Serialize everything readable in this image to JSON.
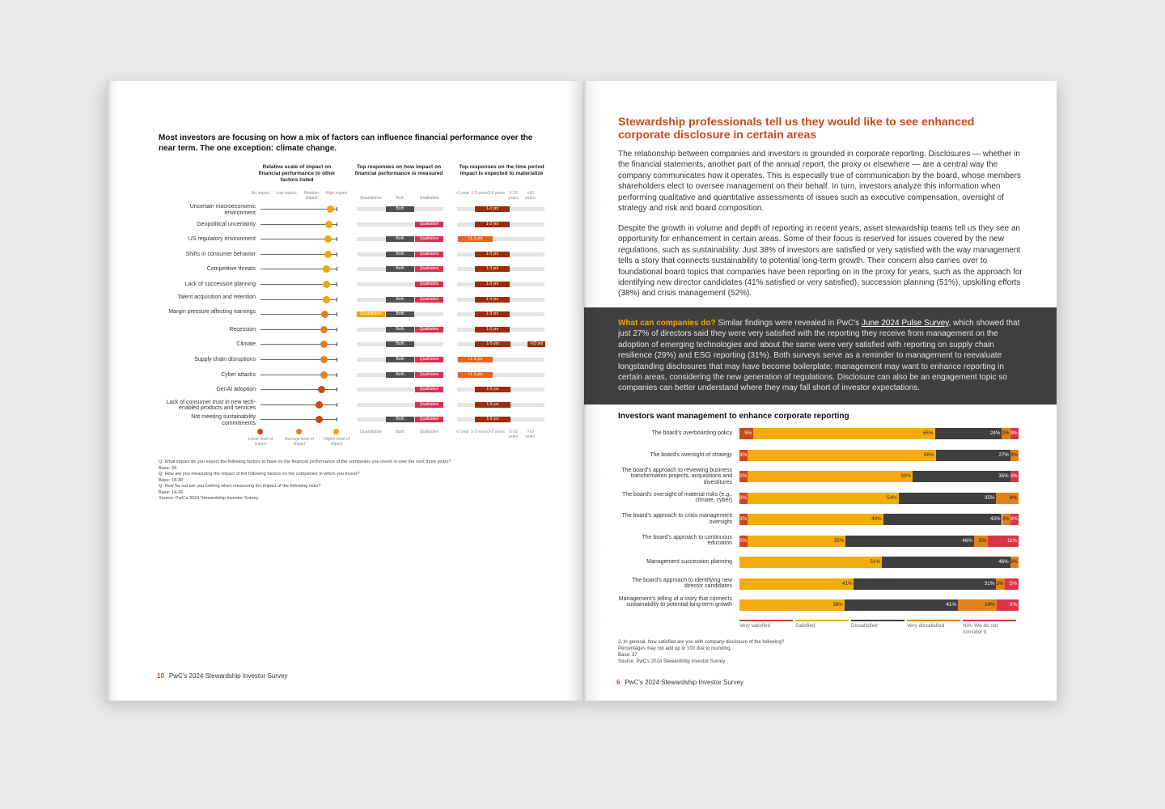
{
  "left_page": {
    "title": "Most investors are focusing on how a mix of factors can influence financial performance over the near term. The one exception: climate change.",
    "column_headers": [
      "Relative scale of impact on financial performance to other factors listed",
      "Top responses on how impact on financial performance is measured",
      "Top responses on the time period impact is expected to materialize"
    ],
    "scale_labels": [
      "No impact",
      "Low impact",
      "Medium impact",
      "High impact"
    ],
    "measure_labels": [
      "Quantitative",
      "Both",
      "Qualitative"
    ],
    "period_labels": [
      "<1 year",
      "1-3 years",
      "3-5 years",
      "5-10 years",
      ">10 years"
    ],
    "rows": [
      {
        "label": "Uncertain macroeconomic environment",
        "impact": 2.75,
        "level": "higher",
        "measure": [
          "Both"
        ],
        "periods": [
          "1-3 yrs"
        ]
      },
      {
        "label": "Geopolitical uncertainty",
        "impact": 2.7,
        "level": "higher",
        "measure": [
          "Qualitative"
        ],
        "periods": [
          "1-3 yrs"
        ]
      },
      {
        "label": "US regulatory environment",
        "impact": 2.65,
        "level": "higher",
        "measure": [
          "Both",
          "Qualitative"
        ],
        "periods": [
          "<1-3 yrs"
        ]
      },
      {
        "label": "Shifts in consumer behavior",
        "impact": 2.65,
        "level": "higher",
        "measure": [
          "Both",
          "Qualitative"
        ],
        "periods": [
          "1-3 yrs"
        ]
      },
      {
        "label": "Competitive threats",
        "impact": 2.6,
        "level": "higher",
        "measure": [
          "Both",
          "Qualitative"
        ],
        "periods": [
          "1-3 yrs"
        ]
      },
      {
        "label": "Lack of succession planning",
        "impact": 2.6,
        "level": "higher",
        "measure": [
          "Qualitative"
        ],
        "periods": [
          "1-3 yrs"
        ]
      },
      {
        "label": "Talent acquisition and retention",
        "impact": 2.6,
        "level": "higher",
        "measure": [
          "Both",
          "Qualitative"
        ],
        "periods": [
          "1-3 yrs"
        ]
      },
      {
        "label": "Margin pressure affecting earnings",
        "impact": 2.55,
        "level": "average",
        "measure": [
          "Quantitative",
          "Both"
        ],
        "periods": [
          "1-3 yrs"
        ]
      },
      {
        "label": "Recession",
        "impact": 2.5,
        "level": "average",
        "measure": [
          "Both",
          "Qualitative"
        ],
        "periods": [
          "1-3 yrs"
        ]
      },
      {
        "label": "Climate",
        "impact": 2.5,
        "level": "average",
        "measure": [
          "Both"
        ],
        "periods": [
          "1-5 yrs",
          ">10 yrs"
        ]
      },
      {
        "label": "Supply chain disruptions",
        "impact": 2.5,
        "level": "average",
        "measure": [
          "Both",
          "Qualitative"
        ],
        "periods": [
          "<1-3 yrs"
        ]
      },
      {
        "label": "Cyber attacks",
        "impact": 2.5,
        "level": "average",
        "measure": [
          "Both",
          "Qualitative"
        ],
        "periods": [
          "<1-3 yrs"
        ]
      },
      {
        "label": "GenAI adoption",
        "impact": 2.4,
        "level": "lower",
        "measure": [
          "Qualitative"
        ],
        "periods": [
          "1-5 yrs"
        ]
      },
      {
        "label": "Lack of consumer trust in new tech-enabled products and services",
        "impact": 2.3,
        "level": "lower",
        "measure": [
          "Qualitative"
        ],
        "periods": [
          "1-5 yrs"
        ]
      },
      {
        "label": "Not meeting sustainability commitments",
        "impact": 2.3,
        "level": "lower",
        "measure": [
          "Both",
          "Qualitative"
        ],
        "periods": [
          "1-5 yrs"
        ]
      }
    ],
    "key": [
      "Lower level of impact",
      "Average level of impact",
      "Higher level of impact"
    ],
    "notes": [
      "Q: What impact do you expect the following factors to have on the financial performance of the companies you invest in over the next three years?",
      "Base: 34",
      "Q: How are you measuring the impact of the following factors on the companies in which you invest?",
      "Base: 18-30",
      "Q: How far out are you looking when measuring the impact of the following risks?",
      "Base: 14-26",
      "Source: PwC's 2024 Stewardship Investor Survey"
    ],
    "page_number": "10",
    "footer": "PwC's 2024 Stewardship Investor Survey"
  },
  "right_page": {
    "heading": "Stewardship professionals tell us they would like to see enhanced corporate disclosure in certain areas",
    "paragraph1": "The relationship between companies and investors is grounded in corporate reporting. Disclosures — whether in the financial statements, another part of the annual report, the proxy or elsewhere — are a central way the company communicates how it operates. This is especially true of communication by the board, whose members shareholders elect to oversee management on their behalf. In turn, investors analyze this information when performing qualitative and quantitative assessments of issues such as executive compensation, oversight of strategy and risk and board composition.",
    "paragraph2": "Despite the growth in volume and depth of reporting in recent years, asset stewardship teams tell us they see an opportunity for enhancement in certain areas. Some of their focus is reserved for issues covered by the new regulations, such as sustainability. Just 38% of investors are satisfied or very satisfied with the way management tells a story that connects sustainability to potential long-term growth. Their concern also carries over to foundational board topics that companies have been reporting on in the proxy for years, such as the approach for identifying new director candidates (41% satisfied or very satisfied), succession planning (51%), upskilling efforts (38%) and crisis management (52%).",
    "callout": {
      "heading": "What can companies do?",
      "before_link": " Similar findings were revealed in PwC's ",
      "link": "June 2024 Pulse Survey",
      "after_link": ", which showed that just 27% of directors said they were very satisfied with the reporting they receive from management on the adoption of emerging technologies and about the same were very satisfied with reporting on supply chain resilience (29%) and ESG reporting (31%). Both surveys serve as a reminder to management to reevaluate longstanding disclosures that may have become boilerplate; management may want to enhance reporting in certain areas, considering the new generation of regulations. Disclosure can also be an engagement topic so companies can better understand where they may fall short of investor expectations."
    },
    "page_number": "6",
    "footer": "PwC's 2024 Stewardship Investor Survey",
    "notes": [
      "2. In general, how satisfied are you with company disclosure of the following?",
      "Percentages may not add up to 100 due to rounding.",
      "Base: 37",
      "Source: PwC's 2024 Stewardship Investor Survey"
    ]
  },
  "colors": {
    "very_satisfied": "#c8491c",
    "satisfied": "#f2ac0f",
    "dissatisfied": "#3f3f3f",
    "very_dissatisfied": "#e0821a",
    "na": "#db3448",
    "both": "#505050",
    "qualitative": "#d9304f",
    "quantitative": "#f0a500",
    "period": "#9c2c0a",
    "period_short": "#e8641e",
    "dot_higher": "#f0a500",
    "dot_average": "#e0801c",
    "dot_lower": "#c8491c"
  },
  "chart_data": {
    "type": "bar",
    "orientation": "horizontal-stacked",
    "title": "Investors want management to enhance corporate reporting",
    "categories": [
      "The board's overboarding policy",
      "The board's oversight of strategy",
      "The board's approach to reviewing business transformation projects, acquisitions and divestitures",
      "The board's oversight of material risks (e.g., climate, cyber)",
      "The board's approach to crisis management oversight",
      "The board's approach to continuous education",
      "Management succession planning",
      "The board's approach to identifying new director candidates",
      "Management's telling of a story that connects sustainability to potential long-term growth"
    ],
    "series": [
      {
        "name": "Very satisfied",
        "values": [
          5,
          3,
          3,
          3,
          3,
          3,
          0,
          0,
          0
        ]
      },
      {
        "name": "Satisfied",
        "values": [
          65,
          68,
          59,
          54,
          49,
          35,
          51,
          41,
          38
        ]
      },
      {
        "name": "Dissatisfied",
        "values": [
          24,
          27,
          35,
          35,
          43,
          46,
          46,
          51,
          41
        ]
      },
      {
        "name": "Very dissatisfied",
        "values": [
          3,
          3,
          0,
          8,
          3,
          5,
          3,
          3,
          14
        ]
      },
      {
        "name": "N/A: We do not consider it",
        "values": [
          3,
          0,
          3,
          0,
          3,
          11,
          0,
          5,
          8
        ]
      }
    ],
    "xlim": [
      0,
      100
    ],
    "legend_position": "bottom"
  }
}
